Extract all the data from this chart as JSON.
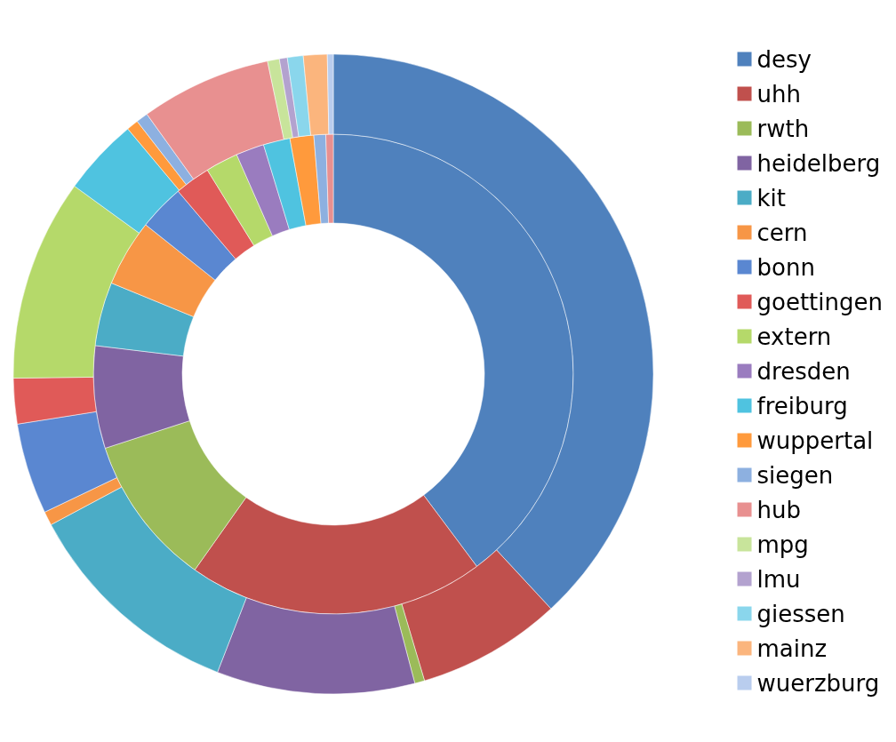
{
  "chart_data": {
    "type": "donut",
    "categories": [
      "desy",
      "uhh",
      "rwth",
      "heidelberg",
      "kit",
      "cern",
      "bonn",
      "goettingen",
      "extern",
      "dresden",
      "freiburg",
      "wuppertal",
      "siegen",
      "hub",
      "mpg",
      "lmu",
      "giessen",
      "mainz",
      "wuerzburg"
    ],
    "colors": [
      "#4f81bd",
      "#c0504d",
      "#9bbb59",
      "#8064a2",
      "#4bacc6",
      "#f79646",
      "#5a87d1",
      "#e05a58",
      "#b5d96a",
      "#9a7cbf",
      "#4fc3e0",
      "#ff9a3c",
      "#8db0e0",
      "#e89090",
      "#c8e49b",
      "#b3a2cf",
      "#8ad6ec",
      "#fbb57d",
      "#b9cdee"
    ],
    "series": [
      {
        "values": [
          39.8,
          20,
          10.2,
          6.9,
          4.3,
          4.5,
          3.1,
          2.4,
          2.2,
          1.9,
          1.8,
          1.6,
          0.8,
          0.5,
          0,
          0,
          0,
          0,
          0
        ]
      },
      {
        "values": [
          38.1,
          7.3,
          0.5,
          10,
          11.3,
          0.7,
          4.6,
          2.3,
          10.2,
          0,
          3.9,
          0.6,
          0.6,
          6.6,
          0.6,
          0.4,
          0.8,
          1.2,
          0.3
        ]
      }
    ],
    "legend": "right"
  }
}
